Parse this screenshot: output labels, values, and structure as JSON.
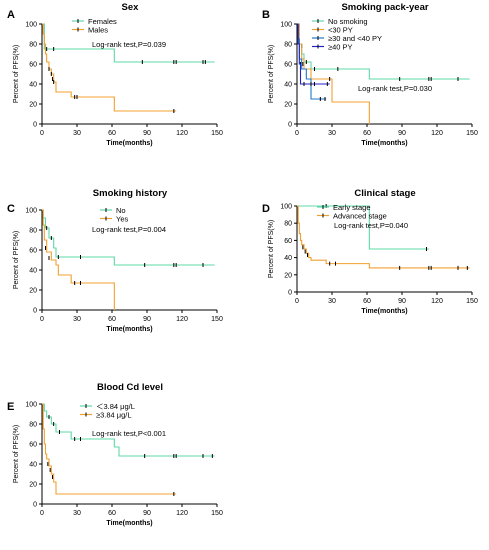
{
  "chart_data": [
    {
      "type": "line",
      "letter": "A",
      "title": "Sex",
      "xlabel": "Time(months)",
      "ylabel": "Percent of PFS(%)",
      "xlim": [
        0,
        150
      ],
      "ylim": [
        0,
        100
      ],
      "xticks": [
        0,
        30,
        60,
        90,
        120,
        150
      ],
      "yticks": [
        0,
        20,
        40,
        60,
        80,
        100
      ],
      "annotation": "Log-rank test,P=0.039",
      "series": [
        {
          "name": "Females",
          "color": "#5fd8a8",
          "points": [
            [
              0,
              100
            ],
            [
              2,
              75
            ],
            [
              62,
              75
            ],
            [
              62,
              62
            ],
            [
              148,
              62
            ]
          ],
          "censors": [
            [
              4,
              75
            ],
            [
              10,
              75
            ],
            [
              86,
              62
            ],
            [
              113,
              62
            ],
            [
              115,
              62
            ],
            [
              138,
              62
            ],
            [
              140,
              62
            ]
          ]
        },
        {
          "name": "Males",
          "color": "#f0a030",
          "points": [
            [
              0,
              100
            ],
            [
              1,
              90
            ],
            [
              2,
              80
            ],
            [
              3,
              70
            ],
            [
              4,
              62
            ],
            [
              6,
              55
            ],
            [
              8,
              50
            ],
            [
              10,
              42
            ],
            [
              12,
              32
            ],
            [
              25,
              32
            ],
            [
              25,
              27
            ],
            [
              62,
              27
            ],
            [
              62,
              13
            ],
            [
              115,
              13
            ]
          ],
          "censors": [
            [
              6,
              55
            ],
            [
              8,
              50
            ],
            [
              9,
              45
            ],
            [
              10,
              42
            ],
            [
              28,
              27
            ],
            [
              30,
              27
            ],
            [
              113,
              13
            ]
          ]
        }
      ]
    },
    {
      "type": "line",
      "letter": "B",
      "title": "Smoking pack-year",
      "xlabel": "Time(months)",
      "ylabel": "Percent of PFS(%)",
      "xlim": [
        0,
        150
      ],
      "ylim": [
        0,
        100
      ],
      "xticks": [
        0,
        30,
        60,
        90,
        120,
        150
      ],
      "yticks": [
        0,
        20,
        40,
        60,
        80,
        100
      ],
      "annotation": "Log-rank test,P=0.030",
      "series": [
        {
          "name": "No smoking",
          "color": "#5fd8a8",
          "points": [
            [
              0,
              100
            ],
            [
              1,
              90
            ],
            [
              2,
              80
            ],
            [
              4,
              70
            ],
            [
              6,
              62
            ],
            [
              12,
              55
            ],
            [
              62,
              55
            ],
            [
              62,
              45
            ],
            [
              148,
              45
            ]
          ],
          "censors": [
            [
              4,
              78
            ],
            [
              8,
              62
            ],
            [
              15,
              55
            ],
            [
              35,
              55
            ],
            [
              88,
              45
            ],
            [
              113,
              45
            ],
            [
              115,
              45
            ],
            [
              138,
              45
            ]
          ]
        },
        {
          "name": "<30 PY",
          "color": "#f0a030",
          "points": [
            [
              0,
              100
            ],
            [
              2,
              80
            ],
            [
              4,
              65
            ],
            [
              6,
              55
            ],
            [
              12,
              45
            ],
            [
              30,
              45
            ],
            [
              30,
              22
            ],
            [
              62,
              22
            ],
            [
              62,
              0
            ]
          ],
          "censors": [
            [
              5,
              60
            ],
            [
              28,
              45
            ]
          ]
        },
        {
          "name": "≥30 and <40 PY",
          "color": "#1f78c8",
          "points": [
            [
              0,
              100
            ],
            [
              1,
              85
            ],
            [
              2,
              65
            ],
            [
              4,
              55
            ],
            [
              8,
              45
            ],
            [
              12,
              25
            ],
            [
              25,
              25
            ]
          ],
          "censors": [
            [
              3,
              60
            ],
            [
              20,
              25
            ],
            [
              24,
              25
            ]
          ]
        },
        {
          "name": "≥40 PY",
          "color": "#2222cc",
          "points": [
            [
              0,
              100
            ],
            [
              1,
              80
            ],
            [
              2,
              60
            ],
            [
              3,
              40
            ],
            [
              28,
              40
            ]
          ],
          "censors": [
            [
              6,
              40
            ],
            [
              12,
              40
            ],
            [
              15,
              40
            ],
            [
              26,
              40
            ]
          ]
        }
      ]
    },
    {
      "type": "line",
      "letter": "C",
      "title": "Smoking history",
      "xlabel": "Time(months)",
      "ylabel": "Percent of PFS(%)",
      "xlim": [
        0,
        150
      ],
      "ylim": [
        0,
        100
      ],
      "xticks": [
        0,
        30,
        60,
        90,
        120,
        150
      ],
      "yticks": [
        0,
        20,
        40,
        60,
        80,
        100
      ],
      "annotation": "Log-rank test,P=0.004",
      "series": [
        {
          "name": "No",
          "color": "#5fd8a8",
          "points": [
            [
              0,
              100
            ],
            [
              1,
              92
            ],
            [
              3,
              82
            ],
            [
              6,
              72
            ],
            [
              10,
              62
            ],
            [
              12,
              53
            ],
            [
              62,
              53
            ],
            [
              62,
              45
            ],
            [
              148,
              45
            ]
          ],
          "censors": [
            [
              4,
              82
            ],
            [
              8,
              72
            ],
            [
              14,
              53
            ],
            [
              33,
              53
            ],
            [
              88,
              45
            ],
            [
              113,
              45
            ],
            [
              115,
              45
            ],
            [
              138,
              45
            ]
          ]
        },
        {
          "name": "Yes",
          "color": "#f0a030",
          "points": [
            [
              0,
              100
            ],
            [
              1,
              85
            ],
            [
              2,
              70
            ],
            [
              4,
              58
            ],
            [
              8,
              50
            ],
            [
              12,
              45
            ],
            [
              14,
              35
            ],
            [
              25,
              35
            ],
            [
              25,
              27
            ],
            [
              62,
              27
            ],
            [
              62,
              0
            ]
          ],
          "censors": [
            [
              3,
              62
            ],
            [
              6,
              52
            ],
            [
              28,
              27
            ],
            [
              33,
              27
            ]
          ]
        }
      ]
    },
    {
      "type": "line",
      "letter": "D",
      "title": "Clinical stage",
      "xlabel": "Time(months)",
      "ylabel": "Percent of PFS(%)",
      "xlim": [
        0,
        150
      ],
      "ylim": [
        0,
        100
      ],
      "xticks": [
        0,
        30,
        60,
        90,
        120,
        150
      ],
      "yticks": [
        0,
        20,
        40,
        60,
        80,
        100
      ],
      "annotation": "Log-rank test,P=0.040",
      "series": [
        {
          "name": "Early stage",
          "color": "#5fd8a8",
          "points": [
            [
              0,
              100
            ],
            [
              62,
              100
            ],
            [
              62,
              50
            ],
            [
              113,
              50
            ]
          ],
          "censors": [
            [
              25,
              100
            ],
            [
              111,
              50
            ]
          ]
        },
        {
          "name": "Advanced stage",
          "color": "#f0a030",
          "points": [
            [
              0,
              100
            ],
            [
              1,
              80
            ],
            [
              2,
              68
            ],
            [
              3,
              60
            ],
            [
              4,
              55
            ],
            [
              6,
              50
            ],
            [
              8,
              45
            ],
            [
              10,
              40
            ],
            [
              12,
              37
            ],
            [
              25,
              37
            ],
            [
              25,
              33
            ],
            [
              62,
              33
            ],
            [
              62,
              28
            ],
            [
              148,
              28
            ]
          ],
          "censors": [
            [
              5,
              52
            ],
            [
              7,
              47
            ],
            [
              9,
              43
            ],
            [
              28,
              33
            ],
            [
              33,
              33
            ],
            [
              88,
              28
            ],
            [
              113,
              28
            ],
            [
              115,
              28
            ],
            [
              138,
              28
            ],
            [
              146,
              28
            ]
          ]
        }
      ]
    },
    {
      "type": "line",
      "letter": "E",
      "title": "Blood Cd level",
      "xlabel": "Time(months)",
      "ylabel": "Percent of PFS(%)",
      "xlim": [
        0,
        150
      ],
      "ylim": [
        0,
        100
      ],
      "xticks": [
        0,
        30,
        60,
        90,
        120,
        150
      ],
      "yticks": [
        0,
        20,
        40,
        60,
        80,
        100
      ],
      "annotation": "Log-rank test,P<0.001",
      "series": [
        {
          "name": "＜3.84 μg/L",
          "color": "#5fd8a8",
          "points": [
            [
              0,
              100
            ],
            [
              2,
              93
            ],
            [
              4,
              87
            ],
            [
              8,
              80
            ],
            [
              12,
              72
            ],
            [
              25,
              72
            ],
            [
              25,
              65
            ],
            [
              62,
              65
            ],
            [
              62,
              57
            ],
            [
              66,
              57
            ],
            [
              66,
              48
            ],
            [
              148,
              48
            ]
          ],
          "censors": [
            [
              6,
              87
            ],
            [
              10,
              80
            ],
            [
              15,
              72
            ],
            [
              28,
              65
            ],
            [
              33,
              65
            ],
            [
              88,
              48
            ],
            [
              113,
              48
            ],
            [
              115,
              48
            ],
            [
              138,
              48
            ],
            [
              146,
              48
            ]
          ]
        },
        {
          "name": "≥3.84 μg/L",
          "color": "#f0a030",
          "points": [
            [
              0,
              100
            ],
            [
              1,
              75
            ],
            [
              2,
              60
            ],
            [
              3,
              50
            ],
            [
              4,
              45
            ],
            [
              6,
              38
            ],
            [
              8,
              30
            ],
            [
              10,
              22
            ],
            [
              12,
              10
            ],
            [
              115,
              10
            ]
          ],
          "censors": [
            [
              5,
              40
            ],
            [
              7,
              34
            ],
            [
              9,
              27
            ],
            [
              113,
              10
            ]
          ]
        }
      ]
    }
  ]
}
